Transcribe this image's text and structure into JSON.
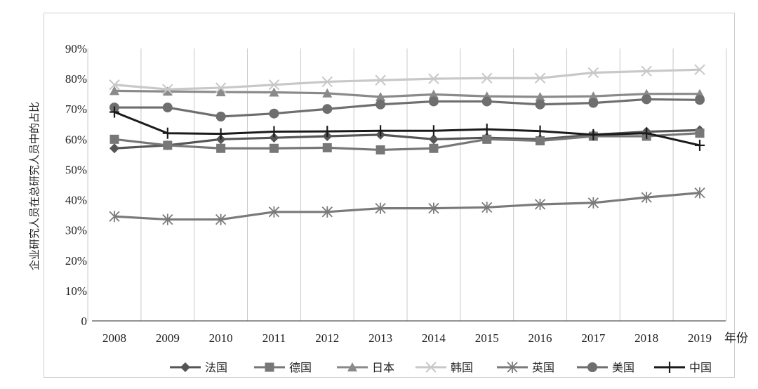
{
  "chart_data": {
    "type": "line",
    "title": "",
    "xlabel": "年份",
    "ylabel": "企业研究人员在总研究人员中的占比",
    "x": [
      "2008",
      "2009",
      "2010",
      "2011",
      "2012",
      "2013",
      "2014",
      "2015",
      "2016",
      "2017",
      "2018",
      "2019"
    ],
    "yticks": [
      "0",
      "10%",
      "20%",
      "30%",
      "40%",
      "50%",
      "60%",
      "70%",
      "80%",
      "90%"
    ],
    "ylim": [
      0,
      90
    ],
    "grid": "vertical",
    "legend_position": "bottom",
    "series": [
      {
        "name": "法国",
        "marker": "diamond",
        "color": "#555555",
        "values": [
          57,
          58,
          60,
          60.5,
          61,
          61.5,
          60,
          60.5,
          60,
          61.5,
          62.5,
          63
        ]
      },
      {
        "name": "德国",
        "marker": "square",
        "color": "#777777",
        "values": [
          60,
          58,
          57,
          57,
          57.2,
          56.5,
          57,
          60,
          59.5,
          61,
          61,
          62
        ]
      },
      {
        "name": "日本",
        "marker": "triangle",
        "color": "#8a8a8a",
        "values": [
          76,
          75.8,
          75.6,
          75.5,
          75.2,
          74,
          74.8,
          74.2,
          74,
          74.2,
          75,
          75
        ]
      },
      {
        "name": "韩国",
        "marker": "x",
        "color": "#c8c8c8",
        "values": [
          78,
          76.5,
          77,
          78,
          79,
          79.5,
          80,
          80.2,
          80.2,
          82,
          82.5,
          83
        ]
      },
      {
        "name": "英国",
        "marker": "star",
        "color": "#7a7a7a",
        "values": [
          34.5,
          33.5,
          33.5,
          36,
          36,
          37.2,
          37.2,
          37.5,
          38.5,
          39,
          40.8,
          42.3
        ]
      },
      {
        "name": "美国",
        "marker": "circle",
        "color": "#6e6e6e",
        "values": [
          70.5,
          70.5,
          67.5,
          68.5,
          70,
          71.5,
          72.5,
          72.5,
          71.5,
          72,
          73.2,
          73
        ]
      },
      {
        "name": "中国",
        "marker": "plus",
        "color": "#1a1a1a",
        "values": [
          69,
          62,
          61.8,
          62.5,
          62.6,
          62.8,
          62.8,
          63.3,
          62.7,
          61.5,
          62,
          58
        ]
      }
    ]
  }
}
